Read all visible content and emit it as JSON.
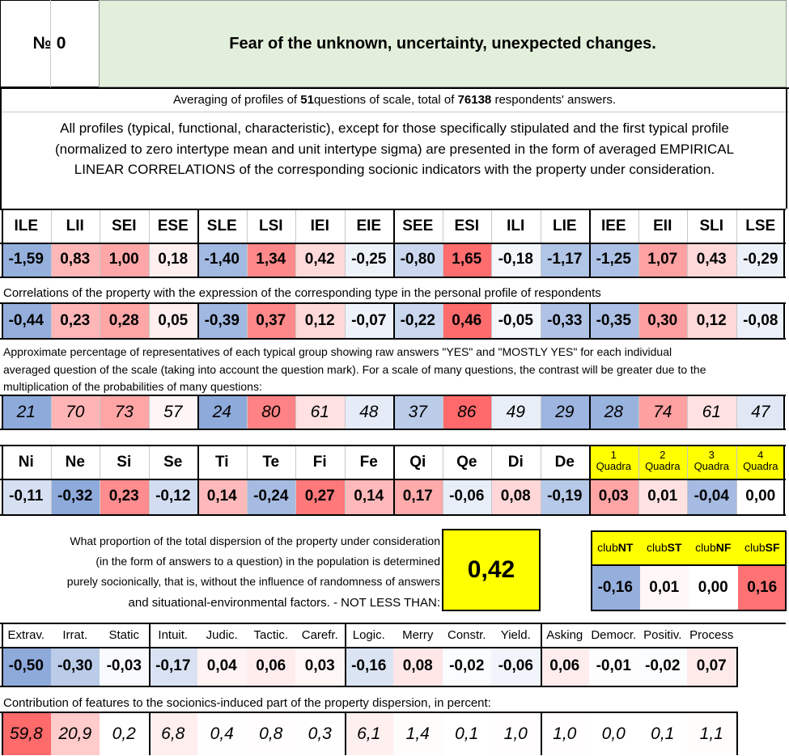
{
  "title": {
    "number_label": "№ 0",
    "text": "Fear of the unknown, uncertainty, unexpected changes."
  },
  "averaging": {
    "prefix": "Averaging of profiles of ",
    "questions": "51",
    "middle": "questions of scale, total of ",
    "answers": "76138",
    "suffix": " respondents' answers."
  },
  "intro": [
    "All profiles (typical, functional, characteristic), except for those specifically stipulated and the first typical profile",
    "(normalized to zero intertype mean and unit intertype sigma) are presented in the form of averaged EMPIRICAL",
    "LINEAR CORRELATIONS of the corresponding socionic indicators with the property under consideration."
  ],
  "types": {
    "headers": [
      "ILE",
      "LII",
      "SEI",
      "ESE",
      "SLE",
      "LSI",
      "IEI",
      "EIE",
      "SEE",
      "ESI",
      "ILI",
      "LIE",
      "IEE",
      "EII",
      "SLI",
      "LSE"
    ],
    "normalized": [
      "-1,59",
      "0,83",
      "1,00",
      "0,18",
      "-1,40",
      "1,34",
      "0,42",
      "-0,25",
      "-0,80",
      "1,65",
      "-0,18",
      "-1,17",
      "-1,25",
      "1,07",
      "0,43",
      "-0,29"
    ],
    "correlation_caption": "Correlations of the property with the expression of the corresponding type in the personal profile of respondents",
    "correlations": [
      "-0,44",
      "0,23",
      "0,28",
      "0,05",
      "-0,39",
      "0,37",
      "0,12",
      "-0,07",
      "-0,22",
      "0,46",
      "-0,05",
      "-0,33",
      "-0,35",
      "0,30",
      "0,12",
      "-0,08"
    ],
    "percent_caption": [
      "Approximate percentage of representatives of each typical group showing raw answers \"YES\" and \"MOSTLY YES\" for each individual",
      "averaged question of the scale (taking into account the question mark). For a scale of many questions, the contrast will be greater due to the",
      "multiplication of the probabilities of many questions:"
    ],
    "percentages": [
      "21",
      "70",
      "73",
      "57",
      "24",
      "80",
      "61",
      "48",
      "37",
      "86",
      "49",
      "29",
      "28",
      "74",
      "61",
      "47"
    ]
  },
  "functions": {
    "headers": [
      "Ni",
      "Ne",
      "Si",
      "Se",
      "Ti",
      "Te",
      "Fi",
      "Fe",
      "Qi",
      "Qe",
      "Di",
      "De"
    ],
    "values": [
      "-0,11",
      "-0,32",
      "0,23",
      "-0,12",
      "0,14",
      "-0,24",
      "0,27",
      "0,14",
      "0,17",
      "-0,06",
      "0,08",
      "-0,19"
    ]
  },
  "quadras": {
    "numbers": [
      "1",
      "2",
      "3",
      "4"
    ],
    "label": "Quadra",
    "values": [
      "0,03",
      "0,01",
      "-0,04",
      "0,00"
    ]
  },
  "dispersion": {
    "text": [
      "What proportion of the total dispersion of the property under consideration",
      "(in the form of answers to a question) in the population is determined",
      "purely socionically, that is, without the influence of randomness of answers",
      "and situational-environmental factors. - NOT LESS THAN:"
    ],
    "value": "0,42"
  },
  "clubs": {
    "prefix": "club",
    "names": [
      "NT",
      "ST",
      "NF",
      "SF"
    ],
    "values": [
      "-0,16",
      "0,01",
      "0,00",
      "0,16"
    ]
  },
  "traits": {
    "headers": [
      "Extrav.",
      "Irrat.",
      "Static",
      "Intuit.",
      "Judic.",
      "Tactic.",
      "Carefr.",
      "Logic.",
      "Merry",
      "Constr.",
      "Yield.",
      "Asking",
      "Democr.",
      "Positiv.",
      "Process"
    ],
    "values": [
      "-0,50",
      "-0,30",
      "-0,03",
      "-0,17",
      "0,04",
      "0,06",
      "0,03",
      "-0,16",
      "0,08",
      "-0,02",
      "-0,06",
      "0,06",
      "-0,01",
      "-0,02",
      "0,07"
    ],
    "contribution_caption": "Contribution of features to the socionics-induced part of the property dispersion, in percent:",
    "contributions": [
      "59,8",
      "20,9",
      "0,2",
      "6,8",
      "0,4",
      "0,8",
      "0,3",
      "6,1",
      "1,4",
      "0,1",
      "1,0",
      "1,0",
      "0,0",
      "0,1",
      "1,1"
    ]
  },
  "colors": {
    "title_bg": "#e2efda",
    "yellow": "#ffff00",
    "blue_strong": "#8eaadb",
    "red_strong": "#f8696b"
  }
}
